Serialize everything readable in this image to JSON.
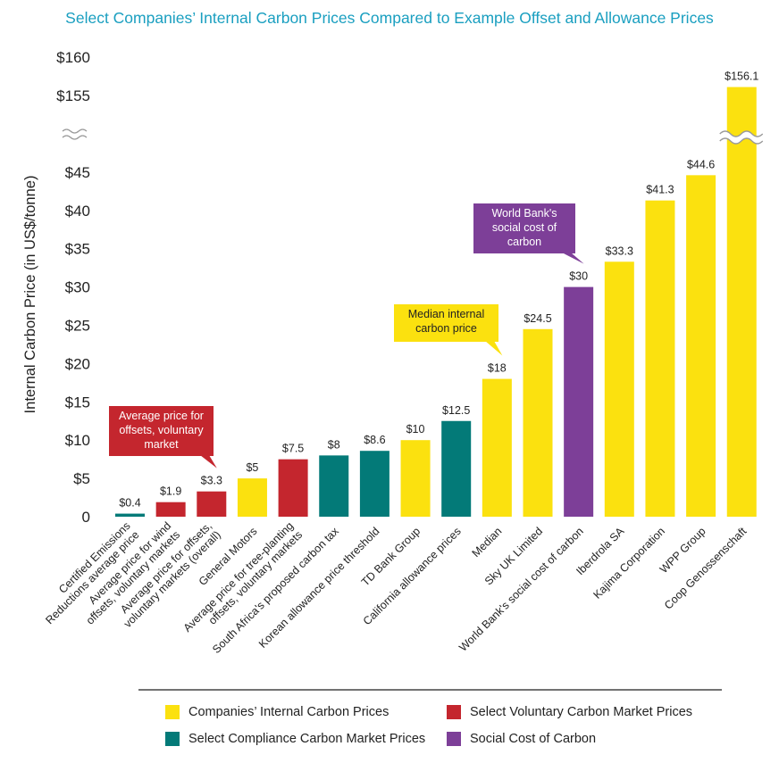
{
  "chart_data": {
    "type": "bar",
    "title": "Select Companies’ Internal Carbon Prices Compared to Example Offset and Allowance Prices",
    "ylabel": "Internal Carbon Price (in US$/tonne)",
    "ylim": [
      0,
      160
    ],
    "axis_break": [
      45,
      155
    ],
    "y_ticks_lower": [
      "0",
      "$5",
      "$10",
      "$15",
      "$20",
      "$25",
      "$30",
      "$35",
      "$40",
      "$45"
    ],
    "y_ticks_upper": [
      "$155",
      "$160"
    ],
    "categories": [
      "Certified Emissions Reductions average price",
      "Average price for wind offsets, voluntary markets",
      "Average price for offsets, voluntary markets (overall)",
      "General Motors",
      "Average price for tree-planting offsets, voluntary markets",
      "South Africa's proposed carbon tax",
      "Korean allowance price threshold",
      "TD Bank Group",
      "California allowance prices",
      "Median",
      "Sky UK Limited",
      "World Bank's social cost of carbon",
      "Iberdrola SA",
      "Kajima Corporation",
      "WPP Group",
      "Coop Genossenschaft"
    ],
    "x_labels": [
      [
        "Certified Emissions",
        "Reductions average price"
      ],
      [
        "Average price for wind",
        "offsets, voluntary markets"
      ],
      [
        "Average price for offsets,",
        "voluntary markets (overall)"
      ],
      [
        "General Motors"
      ],
      [
        "Average price for tree-planting",
        "offsets, voluntary markets"
      ],
      [
        "South Africa's proposed carbon tax"
      ],
      [
        "Korean allowance price threshold"
      ],
      [
        "TD Bank Group"
      ],
      [
        "California allowance prices"
      ],
      [
        "Median"
      ],
      [
        "Sky UK Limited"
      ],
      [
        "World Bank's social cost of carbon"
      ],
      [
        "Iberdrola SA"
      ],
      [
        "Kajima Corporation"
      ],
      [
        "WPP Group"
      ],
      [
        "Coop Genossenschaft"
      ]
    ],
    "values": [
      0.4,
      1.9,
      3.3,
      5,
      7.5,
      8,
      8.6,
      10,
      12.5,
      18,
      24.5,
      30,
      33.3,
      41.3,
      44.6,
      156.1
    ],
    "value_labels": [
      "$0.4",
      "$1.9",
      "$3.3",
      "$5",
      "$7.5",
      "$8",
      "$8.6",
      "$10",
      "$12.5",
      "$18",
      "$24.5",
      "$30",
      "$33.3",
      "$41.3",
      "$44.6",
      "$156.1"
    ],
    "groups": [
      "compliance",
      "voluntary",
      "voluntary",
      "company",
      "voluntary",
      "compliance",
      "compliance",
      "company",
      "compliance",
      "company",
      "company",
      "social",
      "company",
      "company",
      "company",
      "company"
    ],
    "colors": {
      "company": "#fbe10f",
      "voluntary": "#c4262e",
      "compliance": "#037a78",
      "social": "#7d3f98"
    },
    "legend": [
      {
        "key": "company",
        "label": "Companies’ Internal Carbon Prices"
      },
      {
        "key": "voluntary",
        "label": "Select Voluntary Carbon Market Prices"
      },
      {
        "key": "compliance",
        "label": "Select Compliance Carbon Market Prices"
      },
      {
        "key": "social",
        "label": "Social Cost of Carbon"
      }
    ],
    "annotations": [
      {
        "bar": 2,
        "color_key": "voluntary",
        "lines": [
          "Average price for",
          "offsets, voluntary",
          "market"
        ]
      },
      {
        "bar": 9,
        "color_key": "company",
        "lines": [
          "Median internal",
          "carbon price"
        ]
      },
      {
        "bar": 11,
        "color_key": "social",
        "lines": [
          "World Bank's",
          "social cost of",
          "carbon"
        ]
      }
    ],
    "grid": false,
    "legend_position": "bottom"
  }
}
